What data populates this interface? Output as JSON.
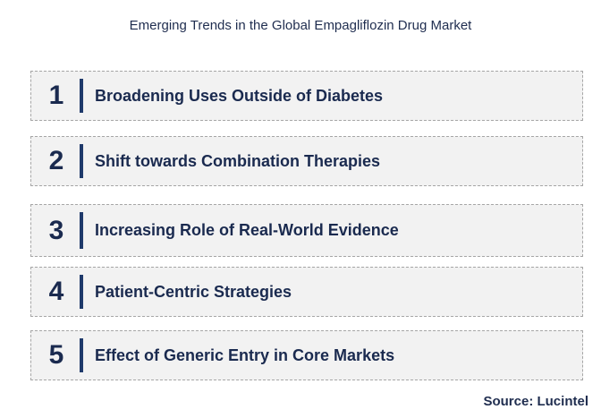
{
  "title": "Emerging Trends in the Global Empagliflozin Drug Market",
  "items": [
    {
      "number": "1",
      "label": "Broadening Uses Outside of Diabetes"
    },
    {
      "number": "2",
      "label": "Shift towards Combination Therapies"
    },
    {
      "number": "3",
      "label": "Increasing Role of Real-World Evidence"
    },
    {
      "number": "4",
      "label": "Patient-Centric Strategies"
    },
    {
      "number": "5",
      "label": "Effect of Generic Entry in Core Markets"
    }
  ],
  "source": "Source: Lucintel",
  "colors": {
    "text": "#1a2a4f",
    "accent_bar": "#1f3a6b",
    "box_fill": "#f2f2f2",
    "box_border": "#a6a6a6"
  }
}
